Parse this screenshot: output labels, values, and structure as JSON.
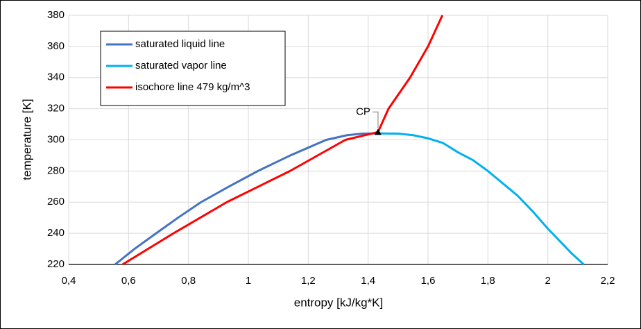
{
  "chart_data": {
    "type": "line",
    "x_label": "entropy [kJ/kg*K]",
    "y_label": "temperature [K]",
    "xlim": [
      0.4,
      2.2
    ],
    "xticks": [
      {
        "value": 0.4,
        "label": "0,4"
      },
      {
        "value": 0.6,
        "label": "0,6"
      },
      {
        "value": 0.8,
        "label": "0,8"
      },
      1,
      {
        "value": 1.2,
        "label": "1,2"
      },
      {
        "value": 1.4,
        "label": "1,4"
      },
      {
        "value": 1.6,
        "label": "1,6"
      },
      {
        "value": 1.8,
        "label": "1,8"
      },
      2,
      {
        "value": 2.2,
        "label": "2,2"
      }
    ],
    "ylim": [
      220,
      380
    ],
    "yticks": [
      220,
      240,
      260,
      280,
      300,
      320,
      340,
      360,
      380
    ],
    "grid": true,
    "legend": "upper left",
    "series": [
      {
        "name": "saturated liquid line",
        "color": "#4472c4",
        "x": [
          0.555,
          0.62,
          0.692,
          0.765,
          0.842,
          0.935,
          1.032,
          1.14,
          1.26,
          1.33,
          1.38,
          1.433
        ],
        "values": [
          220,
          230,
          240,
          250,
          260,
          270,
          280,
          290,
          300,
          303,
          304,
          304.1
        ]
      },
      {
        "name": "saturated vapor line",
        "color": "#00b0f0",
        "x": [
          1.433,
          1.5,
          1.55,
          1.6,
          1.65,
          1.7,
          1.75,
          1.8,
          1.85,
          1.9,
          1.95,
          2.0,
          2.05,
          2.08,
          2.12
        ],
        "values": [
          304.1,
          304,
          303,
          301,
          298,
          292,
          287,
          280,
          272,
          264,
          254,
          243,
          233,
          227,
          220
        ]
      },
      {
        "name": "isochore line 479 kg/m^3",
        "color": "#ff0000",
        "x": [
          0.58,
          0.75,
          0.928,
          1.139,
          1.324,
          1.433,
          1.468,
          1.54,
          1.6,
          1.648
        ],
        "values": [
          220,
          240,
          260,
          280,
          300,
          305,
          320,
          340,
          360,
          380
        ]
      }
    ],
    "annotations": [
      {
        "text": "CP",
        "x": 1.433,
        "y": 304.5
      }
    ]
  }
}
